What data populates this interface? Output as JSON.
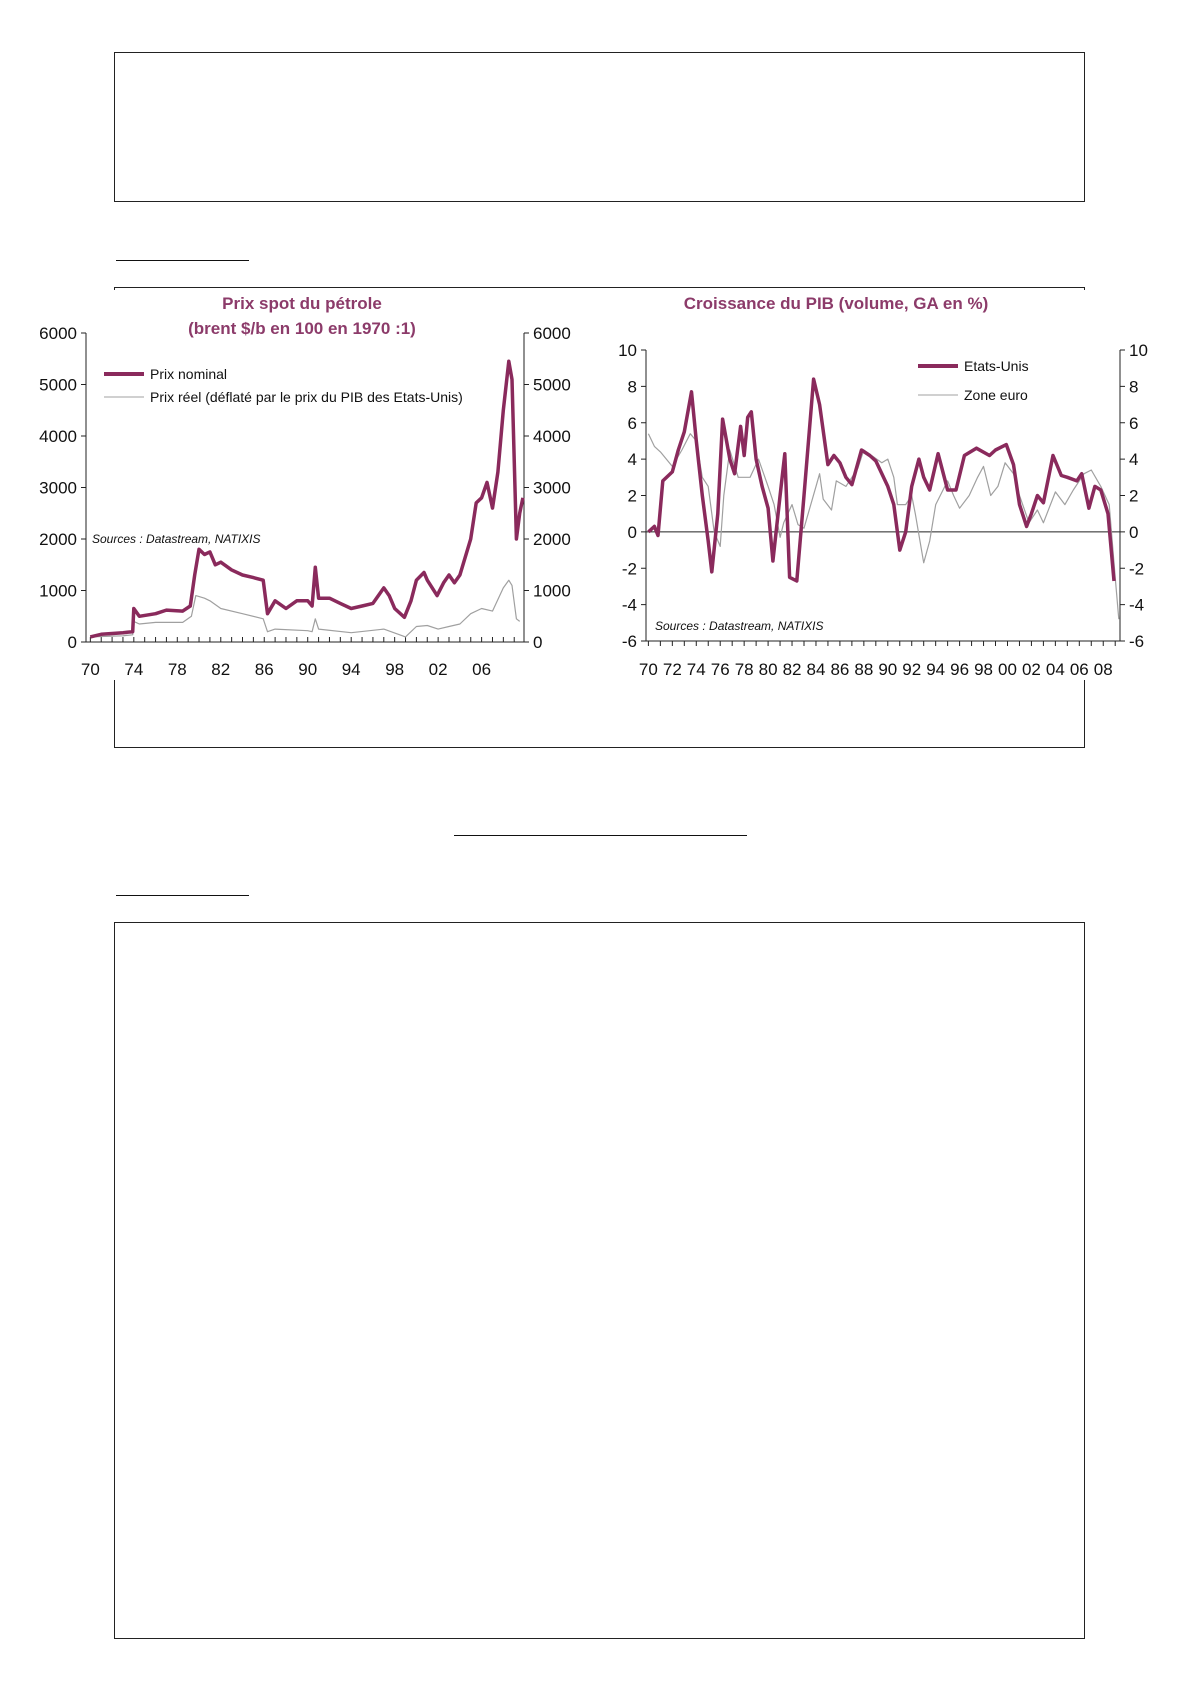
{
  "colors": {
    "nominal": "#8a2a5c",
    "real": "#a0a0a0",
    "title": "#8c3b6a"
  },
  "chart_data": [
    {
      "type": "line",
      "title_line1": "Prix spot du pétrole",
      "title_line2": "(brent $/b en 100 en 1970 :1)",
      "source": "Sources : Datastream, NATIXIS",
      "xlim": [
        1969.6,
        2009.9
      ],
      "ylim": [
        0,
        6000
      ],
      "yticks": [
        0,
        1000,
        2000,
        3000,
        4000,
        5000,
        6000
      ],
      "xtick_years": [
        1970,
        1974,
        1978,
        1982,
        1986,
        1990,
        1994,
        1998,
        2002,
        2006
      ],
      "xtick_labels": [
        "70",
        "74",
        "78",
        "82",
        "86",
        "90",
        "94",
        "98",
        "02",
        "06"
      ],
      "series": [
        {
          "name": "Prix nominal",
          "style": "thick",
          "x": [
            1970,
            1971,
            1973,
            1973.9,
            1974,
            1974.5,
            1976,
            1977,
            1978.5,
            1979.2,
            1979.6,
            1980,
            1980.5,
            1981,
            1981.5,
            1982,
            1983,
            1984,
            1985,
            1985.9,
            1986.3,
            1987,
            1988,
            1989,
            1990,
            1990.4,
            1990.7,
            1991,
            1992,
            1993,
            1994,
            1995,
            1996,
            1997,
            1997.5,
            1998,
            1998.9,
            1999.5,
            2000,
            2000.7,
            2001,
            2001.9,
            2002.5,
            2003,
            2003.5,
            2004,
            2005,
            2005.5,
            2006,
            2006.5,
            2007,
            2007.5,
            2008,
            2008.5,
            2008.8,
            2009.2,
            2009.5,
            2009.8
          ],
          "y": [
            100,
            150,
            180,
            200,
            650,
            500,
            550,
            620,
            600,
            700,
            1300,
            1800,
            1700,
            1750,
            1500,
            1550,
            1400,
            1300,
            1250,
            1200,
            550,
            800,
            650,
            800,
            800,
            700,
            1450,
            850,
            850,
            750,
            650,
            700,
            750,
            1050,
            900,
            650,
            480,
            800,
            1200,
            1350,
            1200,
            900,
            1150,
            1300,
            1150,
            1300,
            2000,
            2700,
            2800,
            3100,
            2600,
            3300,
            4500,
            5450,
            5100,
            2000,
            2500,
            2800
          ]
        },
        {
          "name": "Prix réel (déflaté par le prix du PIB des Etats-Unis)",
          "style": "thin",
          "x": [
            1970,
            1973,
            1973.9,
            1974,
            1974.5,
            1976,
            1978.5,
            1979.3,
            1979.7,
            1980.5,
            1981,
            1982,
            1984,
            1985.9,
            1986.3,
            1987,
            1990,
            1990.4,
            1990.7,
            1991,
            1994,
            1997,
            1999,
            2000,
            2001,
            2002,
            2003,
            2004,
            2005,
            2006,
            2007,
            2008,
            2008.5,
            2008.8,
            2009.2,
            2009.5
          ],
          "y": [
            100,
            120,
            140,
            400,
            350,
            380,
            380,
            500,
            900,
            850,
            800,
            650,
            550,
            450,
            200,
            250,
            220,
            200,
            450,
            250,
            180,
            250,
            100,
            300,
            320,
            250,
            300,
            350,
            550,
            650,
            600,
            1050,
            1200,
            1100,
            450,
            400
          ]
        }
      ]
    },
    {
      "type": "line",
      "title": "Croissance du PIB (volume, GA en %)",
      "source": "Sources : Datastream, NATIXIS",
      "xlim": [
        1969.8,
        2009.4
      ],
      "ylim": [
        -6,
        10
      ],
      "yticks": [
        -6,
        -4,
        -2,
        0,
        2,
        4,
        6,
        8,
        10
      ],
      "ytick_labels": [
        "-6",
        "-4",
        "-2",
        "0",
        "2",
        "4",
        "6",
        "8",
        "10"
      ],
      "xtick_labels": [
        "70",
        "72",
        "74",
        "76",
        "78",
        "80",
        "82",
        "84",
        "86",
        "88",
        "90",
        "92",
        "94",
        "96",
        "98",
        "00",
        "02",
        "04",
        "06",
        "08"
      ],
      "series": [
        {
          "name": "Etats-Unis",
          "style": "thick",
          "x": [
            1970,
            1970.5,
            1970.8,
            1971.2,
            1972,
            1972.5,
            1973,
            1973.6,
            1974,
            1974.5,
            1975,
            1975.3,
            1975.8,
            1976.2,
            1976.8,
            1977.2,
            1977.7,
            1978,
            1978.3,
            1978.6,
            1979,
            1979.5,
            1980,
            1980.4,
            1981,
            1981.4,
            1981.8,
            1982.4,
            1983,
            1983.8,
            1984.3,
            1985,
            1985.5,
            1986,
            1986.5,
            1987,
            1987.8,
            1988.5,
            1989,
            1990,
            1990.5,
            1991,
            1991.5,
            1992,
            1992.6,
            1993,
            1993.5,
            1994.2,
            1995,
            1995.7,
            1996.4,
            1997.4,
            1998.5,
            1999,
            1999.9,
            2000.5,
            2001,
            2001.6,
            2002,
            2002.5,
            2003,
            2003.8,
            2004.5,
            2005,
            2005.8,
            2006.2,
            2006.8,
            2007.3,
            2007.8,
            2008.4,
            2008.9
          ],
          "y": [
            0,
            0.3,
            -0.2,
            2.8,
            3.3,
            4.5,
            5.5,
            7.7,
            5,
            2,
            -0.5,
            -2.2,
            1,
            6.2,
            4,
            3.2,
            5.8,
            4.2,
            6.3,
            6.6,
            4,
            2.5,
            1.3,
            -1.6,
            2,
            4.3,
            -2.5,
            -2.7,
            2,
            8.4,
            7,
            3.7,
            4.2,
            3.8,
            3,
            2.6,
            4.5,
            4.2,
            3.9,
            2.5,
            1.5,
            -1,
            0,
            2.5,
            4,
            3,
            2.3,
            4.3,
            2.3,
            2.3,
            4.2,
            4.6,
            4.2,
            4.5,
            4.8,
            3.7,
            1.5,
            0.3,
            1,
            2,
            1.6,
            4.2,
            3.1,
            3,
            2.8,
            3.2,
            1.3,
            2.5,
            2.3,
            1,
            -2.7
          ]
        },
        {
          "name": "Zone euro",
          "style": "thin",
          "x": [
            1970,
            1970.5,
            1971,
            1972,
            1972.8,
            1973.5,
            1974,
            1974.5,
            1975,
            1975.5,
            1976,
            1976.3,
            1976.8,
            1977.5,
            1978.5,
            1979.2,
            1980,
            1980.5,
            1981,
            1981.3,
            1982,
            1982.5,
            1983,
            1984,
            1984.3,
            1984.6,
            1985.3,
            1985.7,
            1986.5,
            1987.5,
            1988,
            1989.5,
            1990,
            1990.5,
            1990.8,
            1991.5,
            1992,
            1992.3,
            1993,
            1993.5,
            1994,
            1995,
            1995.5,
            1996,
            1996.8,
            1997.5,
            1998,
            1998.6,
            1999.2,
            1999.8,
            2000.5,
            2001,
            2001.8,
            2002.5,
            2003,
            2004,
            2004.8,
            2005.5,
            2006.4,
            2007,
            2007.8,
            2008.5,
            2009,
            2009.3
          ],
          "y": [
            5.4,
            4.7,
            4.4,
            3.6,
            4.5,
            5.4,
            5,
            3,
            2.5,
            0,
            -0.8,
            2,
            4.5,
            3,
            3,
            4,
            2.5,
            1.5,
            -0.3,
            0.5,
            1.5,
            0.4,
            0.2,
            2.5,
            3.2,
            1.8,
            1.2,
            2.8,
            2.5,
            3.5,
            4.5,
            3.8,
            4,
            3,
            1.5,
            1.5,
            2,
            1,
            -1.7,
            -0.5,
            1.5,
            2.8,
            2,
            1.3,
            2,
            3,
            3.6,
            2,
            2.5,
            3.8,
            3.2,
            2,
            0.5,
            1.2,
            0.5,
            2.2,
            1.5,
            2.3,
            3.2,
            3.4,
            2.5,
            1.5,
            -2.5,
            -4.8
          ]
        }
      ]
    }
  ]
}
